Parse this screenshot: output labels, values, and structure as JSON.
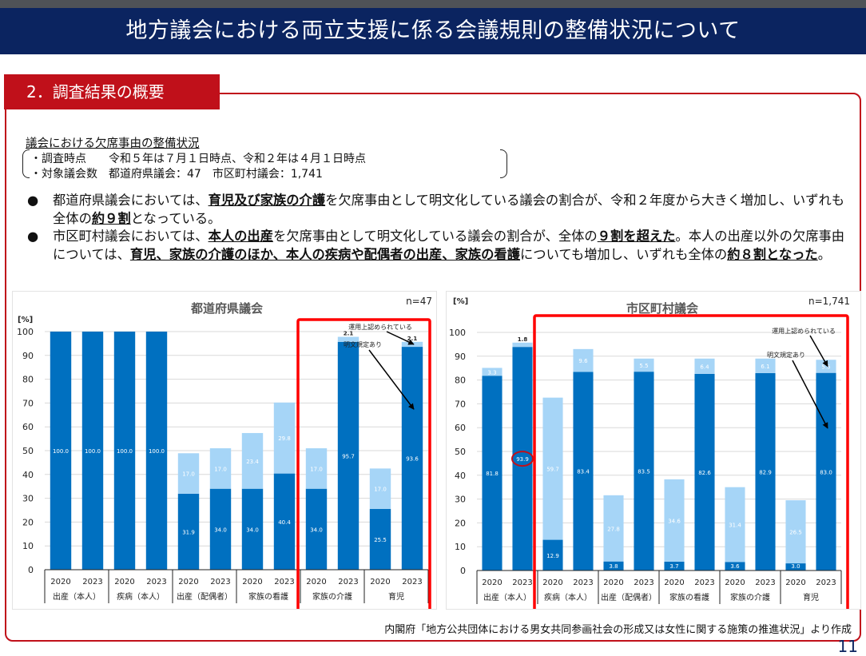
{
  "header": {
    "title": "地方議会における両立支援に係る会議規則の整備状況について"
  },
  "section": {
    "tab_label": "2．調査結果の概要"
  },
  "survey": {
    "subheading": "議会における欠席事由の整備状況",
    "line1": "・調査時点　　令和５年は７月１日時点、令和２年は４月１日時点",
    "line2": "・対象議会数　都道府県議会：47　市区町村議会：1,741"
  },
  "bullets": [
    {
      "symbol": "●",
      "parts": [
        {
          "text": "都道府県議会においては、",
          "em": false
        },
        {
          "text": "育児及び家族の介護",
          "em": true
        },
        {
          "text": "を欠席事由として明文化している議会の割合が、令和２年度から大きく増加し、いずれも全体の",
          "em": false
        },
        {
          "text": "約９割",
          "em": true
        },
        {
          "text": "となっている。",
          "em": false
        }
      ]
    },
    {
      "symbol": "●",
      "parts": [
        {
          "text": "市区町村議会においては、",
          "em": false
        },
        {
          "text": "本人の出産",
          "em": true
        },
        {
          "text": "を欠席事由として明文化している議会の割合が、全体の",
          "em": false
        },
        {
          "text": "９割を超えた",
          "em": true
        },
        {
          "text": "。本人の出産以外の欠席事由については、",
          "em": false
        },
        {
          "text": "育児、家族の介護のほか、本人の疾病や配偶者の出産、家族の看護",
          "em": true
        },
        {
          "text": "についても増加し、いずれも全体の",
          "em": false
        },
        {
          "text": "約８割となった",
          "em": true
        },
        {
          "text": "。",
          "em": false
        }
      ]
    }
  ],
  "colors": {
    "navy": "#0b2460",
    "accent_red": "#c0101a",
    "highlight_red": "#ff0000",
    "explicit_rule": "#0070c0",
    "operational": "#a6d5f7"
  },
  "chart_data": [
    {
      "type": "bar",
      "stacked": true,
      "title": "都道府県議会",
      "n_label": "n=47",
      "ylabel": "[%]",
      "ylim": [
        0,
        100
      ],
      "yticks": [
        0,
        10,
        20,
        30,
        40,
        50,
        60,
        70,
        80,
        90,
        100
      ],
      "grid": true,
      "groups": [
        "出産（本人）",
        "疾病（本人）",
        "出産（配偶者）",
        "家族の看護",
        "家族の介護",
        "育児"
      ],
      "categories": [
        "2020",
        "2023",
        "2020",
        "2023",
        "2020",
        "2023",
        "2020",
        "2023",
        "2020",
        "2023",
        "2020",
        "2023"
      ],
      "series": [
        {
          "name": "明文規定あり",
          "values": [
            100.0,
            100.0,
            100.0,
            100.0,
            31.9,
            34.0,
            34.0,
            40.4,
            34.0,
            95.7,
            25.5,
            93.6
          ]
        },
        {
          "name": "運用上認められている",
          "values": [
            0,
            0,
            0,
            0,
            17.0,
            17.0,
            23.4,
            29.8,
            17.0,
            2.1,
            17.0,
            2.1
          ]
        }
      ],
      "annotations": [
        "運用上認められている",
        "明文規定あり"
      ],
      "highlight_groups": [
        "家族の介護",
        "育児"
      ]
    },
    {
      "type": "bar",
      "stacked": true,
      "title": "市区町村議会",
      "n_label": "n=1,741",
      "ylabel": "[%]",
      "ylim": [
        0,
        100
      ],
      "yticks": [
        0,
        10,
        20,
        30,
        40,
        50,
        60,
        70,
        80,
        90,
        100
      ],
      "grid": true,
      "groups": [
        "出産（本人）",
        "疾病（本人）",
        "出産（配偶者）",
        "家族の看護",
        "家族の介護",
        "育児"
      ],
      "categories": [
        "2020",
        "2023",
        "2020",
        "2023",
        "2020",
        "2023",
        "2020",
        "2023",
        "2020",
        "2023",
        "2020",
        "2023"
      ],
      "series": [
        {
          "name": "明文規定あり",
          "values": [
            81.8,
            93.9,
            12.9,
            83.4,
            3.8,
            83.5,
            3.7,
            82.6,
            3.6,
            82.9,
            3.0,
            83.0
          ]
        },
        {
          "name": "運用上認められている",
          "values": [
            3.3,
            1.8,
            59.7,
            9.6,
            27.8,
            5.5,
            34.6,
            6.4,
            31.4,
            6.1,
            26.5,
            5.5
          ]
        }
      ],
      "annotations": [
        "運用上認められている",
        "明文規定あり"
      ],
      "circled_value": "93.9",
      "highlight_groups": [
        "疾病（本人）",
        "出産（配偶者）",
        "家族の看護",
        "家族の介護",
        "育児"
      ]
    }
  ],
  "footer": {
    "source": "内閣府「地方公共団体における男女共同参画社会の形成又は女性に関する施策の推進状況」より作成",
    "page_number": "11"
  }
}
